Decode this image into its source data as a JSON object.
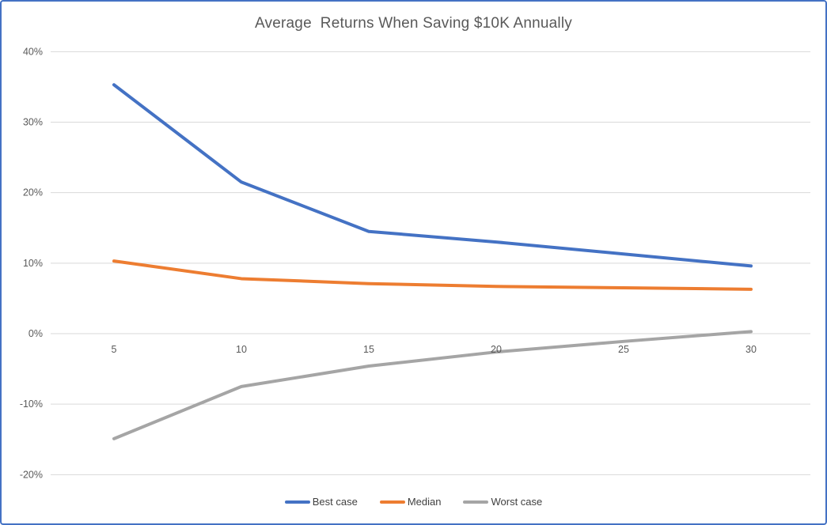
{
  "title": "Average  Returns When Saving $10K Annually",
  "colors": {
    "frame_border": "#4472C4",
    "gridline": "#D9D9D9",
    "axis_text": "#595959",
    "title_text": "#595959",
    "legend_text": "#404040"
  },
  "chart_data": {
    "type": "line",
    "title": "Average  Returns When Saving $10K Annually",
    "xlabel": "",
    "ylabel": "",
    "categories": [
      5,
      10,
      15,
      20,
      25,
      30
    ],
    "series": [
      {
        "name": "Best case",
        "color": "#4472C4",
        "values": [
          35.3,
          21.5,
          14.5,
          13.0,
          11.3,
          9.6
        ]
      },
      {
        "name": "Median",
        "color": "#ED7D31",
        "values": [
          10.3,
          7.8,
          7.1,
          6.7,
          6.5,
          6.3
        ]
      },
      {
        "name": "Worst case",
        "color": "#A5A5A5",
        "values": [
          -14.9,
          -7.5,
          -4.6,
          -2.6,
          -1.1,
          0.3
        ]
      }
    ],
    "y_ticks": [
      "40%",
      "30%",
      "20%",
      "10%",
      "0%",
      "-10%",
      "-20%"
    ],
    "y_tick_values": [
      40,
      30,
      20,
      10,
      0,
      -10,
      -20
    ],
    "ylim": [
      -20,
      40
    ],
    "xlim": [
      5,
      30
    ],
    "grid": true,
    "legend_position": "bottom"
  }
}
